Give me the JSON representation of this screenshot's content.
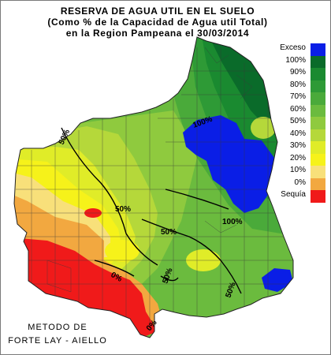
{
  "title": {
    "line1": "RESERVA DE AGUA UTIL EN EL SUELO",
    "line2": "(Como % de la Capacidad de Agua util Total)",
    "line3": "en la Region Pampeana el 30/03/2014"
  },
  "legend": [
    {
      "label": "Exceso",
      "color": "#0a1ee6"
    },
    {
      "label": "100%",
      "color": "#0a6b2a"
    },
    {
      "label": "90%",
      "color": "#1a8a30"
    },
    {
      "label": "80%",
      "color": "#2e9a36"
    },
    {
      "label": "70%",
      "color": "#4aaa3a"
    },
    {
      "label": "60%",
      "color": "#6bbb3e"
    },
    {
      "label": "50%",
      "color": "#8fca3e"
    },
    {
      "label": "40%",
      "color": "#b5d83a"
    },
    {
      "label": "30%",
      "color": "#e0ec28"
    },
    {
      "label": "20%",
      "color": "#f6f21a"
    },
    {
      "label": "10%",
      "color": "#f8e07a"
    },
    {
      "label": "0%",
      "color": "#f2a840"
    },
    {
      "label": "Sequía",
      "color": "#f01a1a"
    }
  ],
  "contour_labels": {
    "c1": "50%",
    "c2": "50%",
    "c3": "0%",
    "c4": "50%",
    "c5": "100%",
    "c6": "100%",
    "c7": "50%",
    "c8": "50%",
    "c9": "0%"
  },
  "footer": {
    "line1": "METODO DE",
    "line2": "FORTE LAY - AIELLO"
  }
}
